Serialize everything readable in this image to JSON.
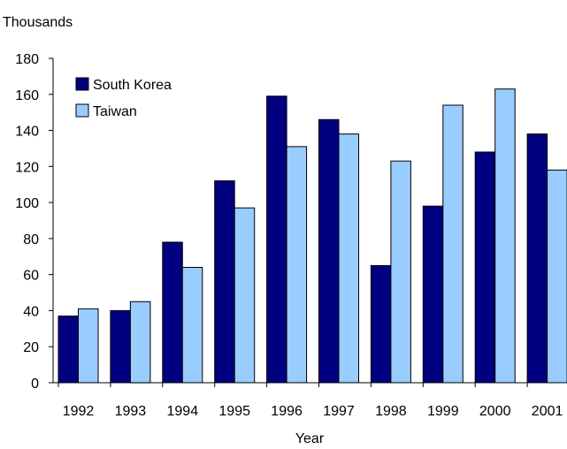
{
  "chart_data": {
    "type": "bar",
    "unit_label": "Thousands",
    "xlabel": "Year",
    "ylabel": "",
    "categories": [
      "1992",
      "1993",
      "1994",
      "1995",
      "1996",
      "1997",
      "1998",
      "1999",
      "2000",
      "2001"
    ],
    "series": [
      {
        "name": "South Korea",
        "color": "#000080",
        "values": [
          37,
          40,
          78,
          112,
          159,
          146,
          65,
          98,
          128,
          138
        ]
      },
      {
        "name": "Taiwan",
        "color": "#99CCFF",
        "values": [
          41,
          45,
          64,
          97,
          131,
          138,
          123,
          154,
          163,
          118
        ]
      }
    ],
    "ylim": [
      0,
      180
    ],
    "yticks": [
      0,
      20,
      40,
      60,
      80,
      100,
      120,
      140,
      160,
      180
    ],
    "grid": false,
    "legend_position": "top-left"
  }
}
